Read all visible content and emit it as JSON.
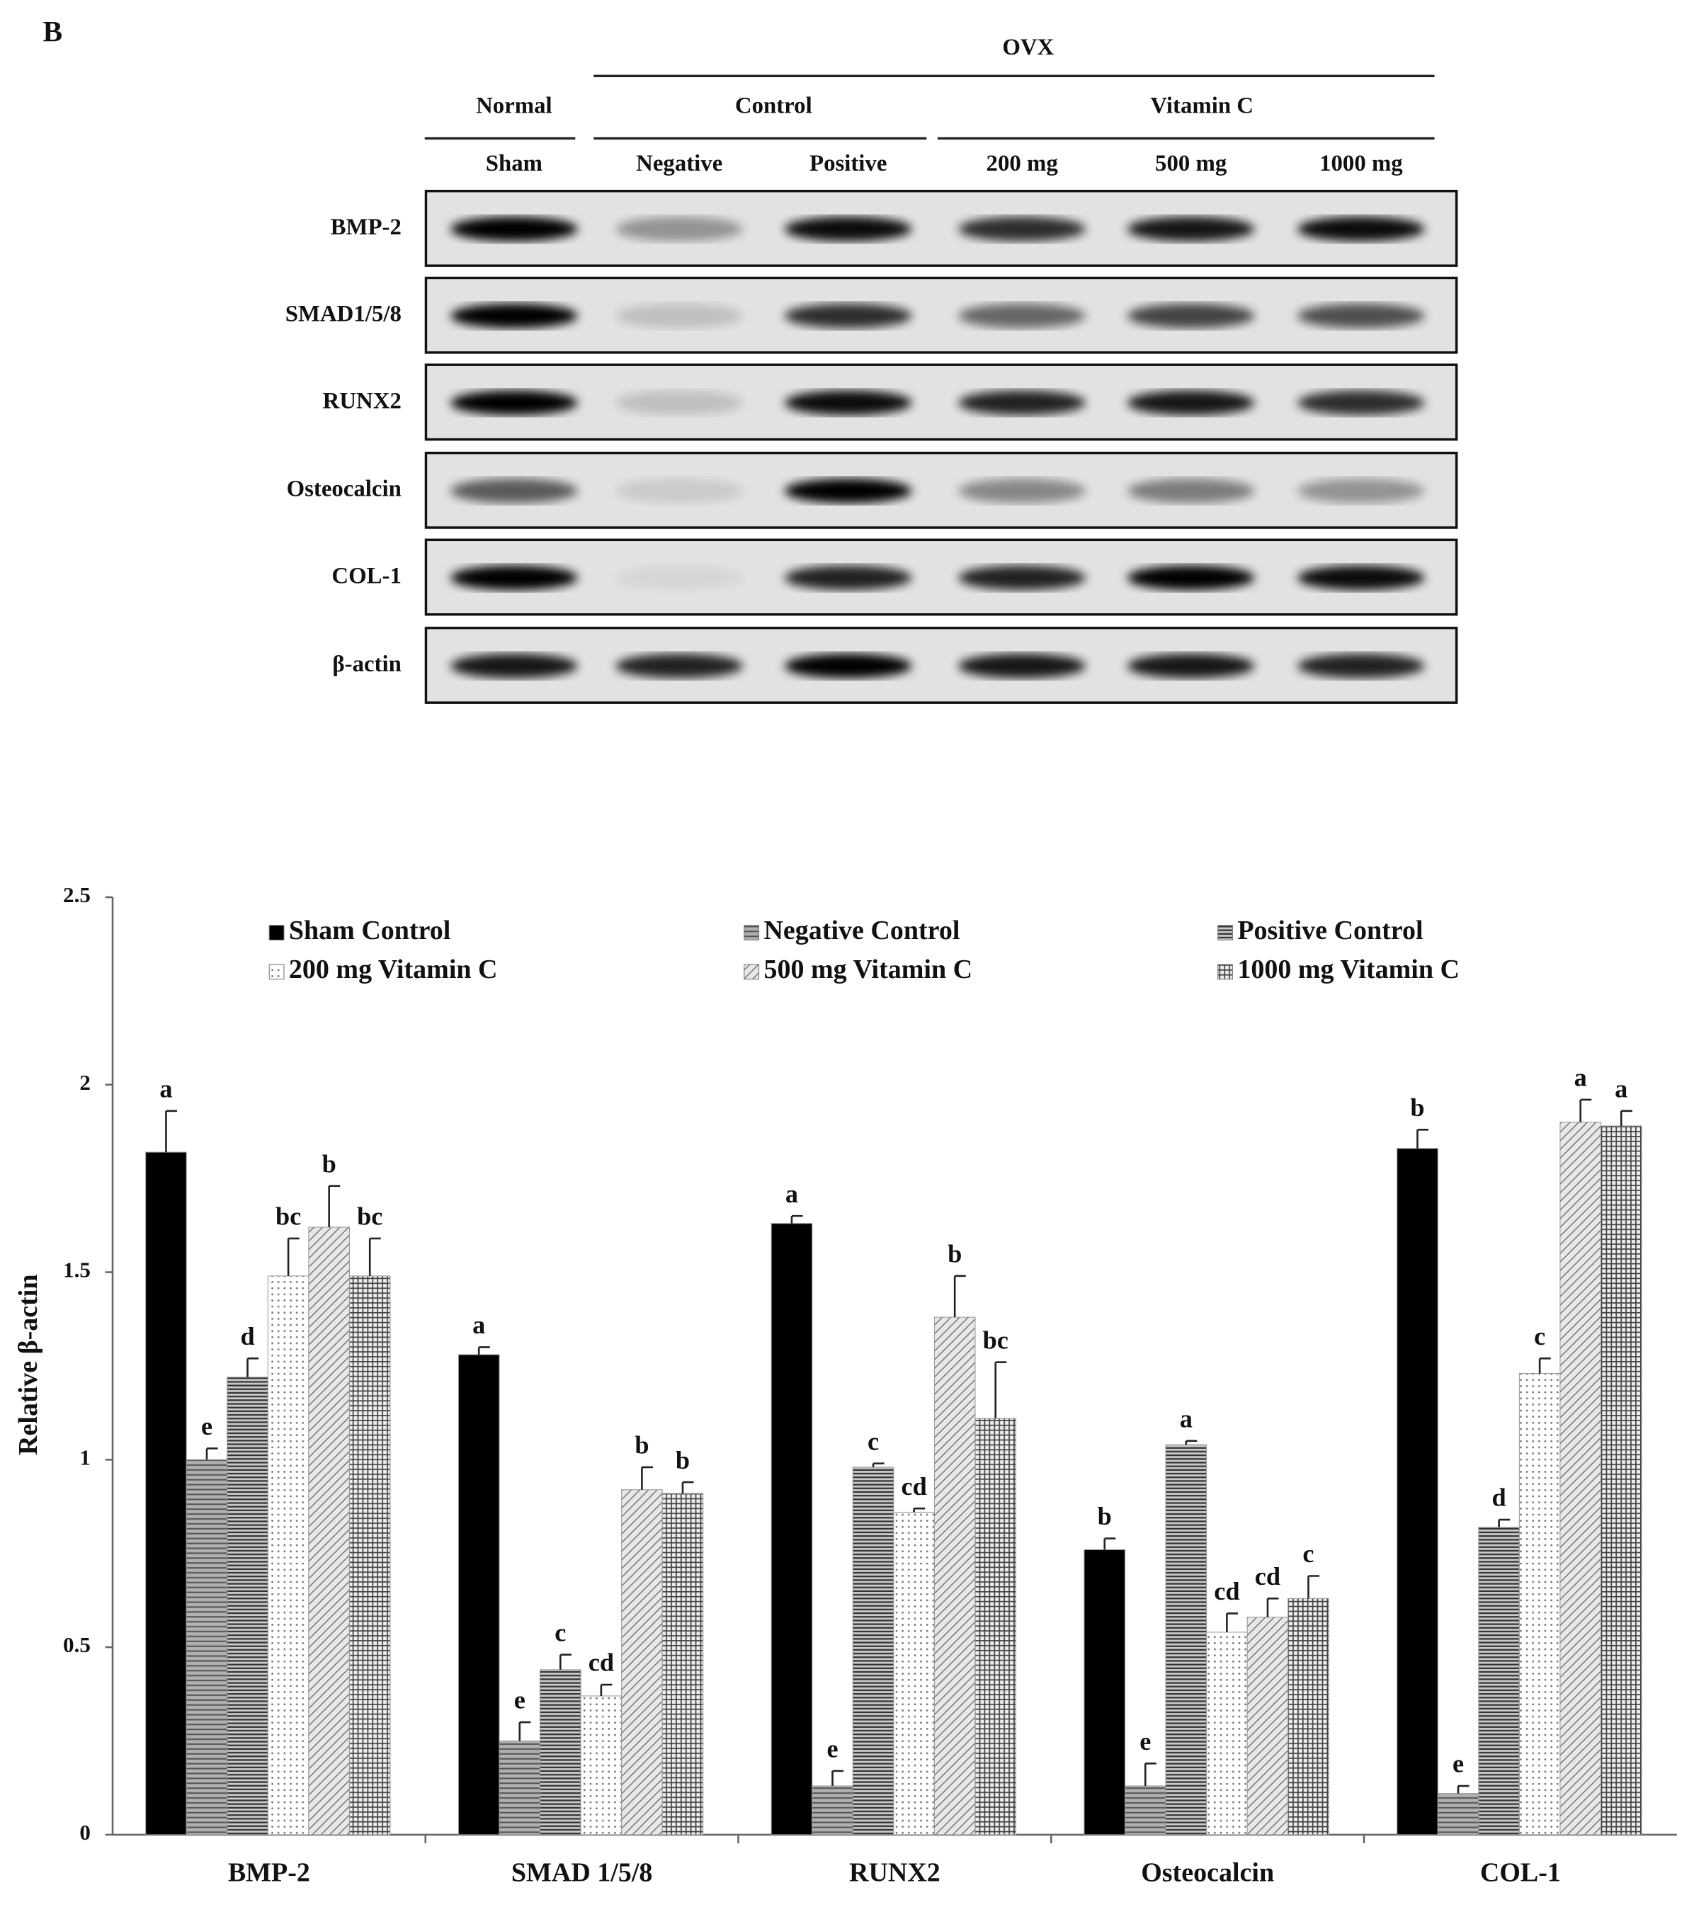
{
  "panel_label": "B",
  "blot": {
    "group_title": "OVX",
    "groups": [
      "Normal",
      "Control",
      "Vitamin C"
    ],
    "lanes": [
      "Sham",
      "Negative",
      "Positive",
      "200 mg",
      "500 mg",
      "1000 mg"
    ],
    "rows": [
      "BMP-2",
      "SMAD1/5/8",
      "RUNX2",
      "Osteocalcin",
      "COL-1",
      "β-actin"
    ]
  },
  "chart_data": {
    "type": "bar",
    "y_label": "Relative β-actin",
    "categories": [
      "BMP-2",
      "SMAD 1/5/8",
      "RUNX2",
      "Osteocalcin",
      "COL-1"
    ],
    "ylim": [
      0,
      2.5
    ],
    "yticks": [
      0,
      0.5,
      1,
      1.5,
      2,
      2.5
    ],
    "series": [
      {
        "name": "Sham Control",
        "color": "#000000",
        "pattern": "solid",
        "values": [
          1.82,
          1.28,
          1.63,
          0.76,
          1.83
        ],
        "errors": [
          0.11,
          0.02,
          0.02,
          0.03,
          0.05
        ],
        "letters": [
          "a",
          "a",
          "a",
          "b",
          "b"
        ]
      },
      {
        "name": "Negative Control",
        "color": "#8c8c8c",
        "pattern": "hlines",
        "values": [
          1.0,
          0.25,
          0.13,
          0.13,
          0.11
        ],
        "errors": [
          0.03,
          0.05,
          0.04,
          0.06,
          0.02
        ],
        "letters": [
          "e",
          "e",
          "e",
          "e",
          "e"
        ]
      },
      {
        "name": "Positive Control",
        "color": "#7a7a7a",
        "pattern": "hlines-dense",
        "values": [
          1.22,
          0.44,
          0.98,
          1.04,
          0.82
        ],
        "errors": [
          0.05,
          0.04,
          0.01,
          0.01,
          0.02
        ],
        "letters": [
          "d",
          "c",
          "c",
          "a",
          "d"
        ]
      },
      {
        "name": "200 mg Vitamin C",
        "color": "#ffffff",
        "pattern": "dots",
        "values": [
          1.49,
          0.37,
          0.86,
          0.54,
          1.23
        ],
        "errors": [
          0.1,
          0.03,
          0.01,
          0.05,
          0.04
        ],
        "letters": [
          "bc",
          "cd",
          "cd",
          "cd",
          "c"
        ]
      },
      {
        "name": "500 mg Vitamin C",
        "color": "#d9d9d9",
        "pattern": "diagonal",
        "values": [
          1.62,
          0.92,
          1.38,
          0.58,
          1.9
        ],
        "errors": [
          0.11,
          0.06,
          0.11,
          0.05,
          0.06
        ],
        "letters": [
          "b",
          "b",
          "b",
          "cd",
          "a"
        ]
      },
      {
        "name": "1000 mg Vitamin C",
        "color": "#e6e6e6",
        "pattern": "grid",
        "values": [
          1.49,
          0.91,
          1.11,
          0.63,
          1.89
        ],
        "errors": [
          0.1,
          0.03,
          0.15,
          0.06,
          0.04
        ],
        "letters": [
          "bc",
          "b",
          "bc",
          "c",
          "a"
        ]
      }
    ]
  }
}
